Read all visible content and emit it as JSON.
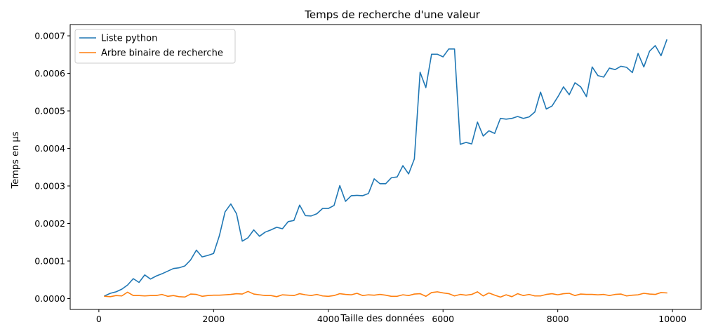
{
  "chart_data": {
    "type": "line",
    "title": "Temps de recherche d'une valeur",
    "xlabel": "Taille des données",
    "ylabel": "Temps en µs",
    "xlim": [
      -500,
      10500
    ],
    "ylim": [
      -2.9e-05,
      0.00073
    ],
    "xticks": [
      0,
      2000,
      4000,
      6000,
      8000,
      10000
    ],
    "xtick_labels": [
      "0",
      "2000",
      "4000",
      "6000",
      "8000",
      "10000"
    ],
    "yticks": [
      0.0,
      0.0001,
      0.0002,
      0.0003,
      0.0004,
      0.0005,
      0.0006,
      0.0007
    ],
    "ytick_labels": [
      "0.0000",
      "0.0001",
      "0.0002",
      "0.0003",
      "0.0004",
      "0.0005",
      "0.0006",
      "0.0007"
    ],
    "grid": false,
    "legend_position": "top-left",
    "x": [
      100,
      200,
      300,
      400,
      500,
      600,
      700,
      800,
      900,
      1000,
      1100,
      1200,
      1300,
      1400,
      1500,
      1600,
      1700,
      1800,
      1900,
      2000,
      2100,
      2200,
      2300,
      2400,
      2500,
      2600,
      2700,
      2800,
      2900,
      3000,
      3100,
      3200,
      3300,
      3400,
      3500,
      3600,
      3700,
      3800,
      3900,
      4000,
      4100,
      4200,
      4300,
      4400,
      4500,
      4600,
      4700,
      4800,
      4900,
      5000,
      5100,
      5200,
      5300,
      5400,
      5500,
      5600,
      5700,
      5800,
      5900,
      6000,
      6100,
      6200,
      6300,
      6400,
      6500,
      6600,
      6700,
      6800,
      6900,
      7000,
      7100,
      7200,
      7300,
      7400,
      7500,
      7600,
      7700,
      7800,
      7900,
      8000,
      8100,
      8200,
      8300,
      8400,
      8500,
      8600,
      8700,
      8800,
      8900,
      9000,
      9100,
      9200,
      9300,
      9400,
      9500,
      9600,
      9700,
      9800,
      9900
    ],
    "series": [
      {
        "name": "Liste python",
        "color": "#1f77b4",
        "values": [
          7e-06,
          1.4e-05,
          1.8e-05,
          2.5e-05,
          3.6e-05,
          5.3e-05,
          4.3e-05,
          6.3e-05,
          5.2e-05,
          6e-05,
          6.6e-05,
          7.3e-05,
          8e-05,
          8.2e-05,
          8.7e-05,
          0.000103,
          0.000129,
          0.000111,
          0.000115,
          0.00012,
          0.000167,
          0.000231,
          0.000252,
          0.000226,
          0.000153,
          0.000162,
          0.000183,
          0.000166,
          0.000177,
          0.000183,
          0.00019,
          0.000186,
          0.000205,
          0.000208,
          0.000249,
          0.000221,
          0.00022,
          0.000226,
          0.00024,
          0.00024,
          0.000248,
          0.000301,
          0.000259,
          0.000274,
          0.000275,
          0.000274,
          0.00028,
          0.000319,
          0.000306,
          0.000306,
          0.000322,
          0.000324,
          0.000354,
          0.000332,
          0.000372,
          0.000603,
          0.000562,
          0.000651,
          0.000651,
          0.000644,
          0.000665,
          0.000665,
          0.000411,
          0.000416,
          0.000412,
          0.00047,
          0.000433,
          0.000447,
          0.00044,
          0.00048,
          0.000478,
          0.00048,
          0.000485,
          0.00048,
          0.000484,
          0.000497,
          0.00055,
          0.000505,
          0.000513,
          0.000537,
          0.000564,
          0.000543,
          0.000575,
          0.000564,
          0.000538,
          0.000617,
          0.000594,
          0.00059,
          0.000614,
          0.00061,
          0.000619,
          0.000616,
          0.000602,
          0.000653,
          0.000617,
          0.000659,
          0.000674,
          0.000647,
          0.000689
        ]
      },
      {
        "name": "Arbre binaire de recherche",
        "color": "#ff7f0e",
        "values": [
          6e-06,
          5e-06,
          8e-06,
          7e-06,
          1.7e-05,
          8e-06,
          8e-06,
          7e-06,
          8e-06,
          8e-06,
          1.1e-05,
          6e-06,
          8e-06,
          5e-06,
          4e-06,
          1.2e-05,
          1.1e-05,
          6e-06,
          8e-06,
          9e-06,
          9e-06,
          1e-05,
          1.1e-05,
          1.3e-05,
          1.2e-05,
          1.9e-05,
          1.2e-05,
          1e-05,
          8e-06,
          8e-06,
          5e-06,
          1e-05,
          9e-06,
          8e-06,
          1.3e-05,
          1e-05,
          8e-06,
          1.1e-05,
          7e-06,
          6e-06,
          8e-06,
          1.3e-05,
          1.1e-05,
          1e-05,
          1.4e-05,
          8e-06,
          1e-05,
          9e-06,
          1.1e-05,
          9e-06,
          6e-06,
          6e-06,
          1e-05,
          8e-06,
          1.2e-05,
          1.3e-05,
          6e-06,
          1.6e-05,
          1.8e-05,
          1.5e-05,
          1.3e-05,
          7e-06,
          1.1e-05,
          9e-06,
          1.1e-05,
          1.8e-05,
          7e-06,
          1.5e-05,
          9e-06,
          4e-06,
          1e-05,
          5e-06,
          1.3e-05,
          8e-06,
          1.1e-05,
          7e-06,
          7e-06,
          1.1e-05,
          1.3e-05,
          1e-05,
          1.3e-05,
          1.4e-05,
          8e-06,
          1.2e-05,
          1.1e-05,
          1.1e-05,
          1e-05,
          1.1e-05,
          8e-06,
          1.1e-05,
          1.2e-05,
          7e-06,
          9e-06,
          1e-05,
          1.4e-05,
          1.2e-05,
          1.1e-05,
          1.6e-05,
          1.5e-05
        ]
      }
    ]
  }
}
